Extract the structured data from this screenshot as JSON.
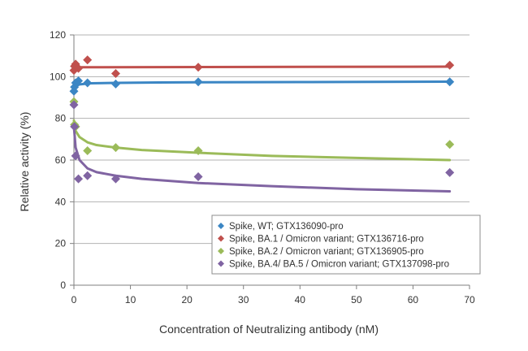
{
  "chart_data": {
    "type": "scatter",
    "xlabel": "Concentration of Neutralizing antibody (nM)",
    "ylabel": "Relative activity (%)",
    "xlim": [
      0,
      70
    ],
    "ylim": [
      0,
      120
    ],
    "x_ticks": [
      0,
      10,
      20,
      30,
      40,
      50,
      60,
      70
    ],
    "y_ticks": [
      0,
      20,
      40,
      60,
      80,
      100,
      120
    ],
    "grid": "horizontal",
    "legend_position": "bottom-right",
    "series": [
      {
        "name": "Spike, WT; GTX136090-pro",
        "color": "#3b86c4",
        "points": [
          [
            0,
            93
          ],
          [
            0.1,
            95
          ],
          [
            0.3,
            97
          ],
          [
            0.8,
            98
          ],
          [
            2.4,
            97
          ],
          [
            7.4,
            96.5
          ],
          [
            22,
            97.5
          ],
          [
            66.5,
            97.5
          ]
        ],
        "trend": [
          [
            0,
            93
          ],
          [
            0.3,
            95.5
          ],
          [
            1,
            96.3
          ],
          [
            3,
            96.8
          ],
          [
            7.4,
            97
          ],
          [
            15,
            97.2
          ],
          [
            22,
            97.3
          ],
          [
            40,
            97.4
          ],
          [
            66.5,
            97.6
          ]
        ]
      },
      {
        "name": "Spike, BA.1 / Omicron variant; GTX136716-pro",
        "color": "#c0504d",
        "points": [
          [
            0,
            103
          ],
          [
            0.1,
            105
          ],
          [
            0.3,
            106
          ],
          [
            0.8,
            104
          ],
          [
            2.4,
            108
          ],
          [
            7.4,
            101.5
          ],
          [
            22,
            104.5
          ],
          [
            66.5,
            105.5
          ]
        ],
        "trend": [
          [
            0,
            104.5
          ],
          [
            66.5,
            104.8
          ]
        ]
      },
      {
        "name": "Spike, BA.2 / Omicron variant; GTX136905-pro",
        "color": "#9bbb59",
        "points": [
          [
            0,
            88
          ],
          [
            0.1,
            77
          ],
          [
            0.3,
            76
          ],
          [
            2.4,
            64.5
          ],
          [
            7.4,
            66
          ],
          [
            22,
            64.5
          ],
          [
            66.5,
            67.5
          ]
        ],
        "trend": [
          [
            0,
            79
          ],
          [
            0.3,
            74
          ],
          [
            1,
            71
          ],
          [
            2.4,
            68.5
          ],
          [
            4,
            67.2
          ],
          [
            7.4,
            66
          ],
          [
            12,
            64.8
          ],
          [
            22,
            63.5
          ],
          [
            35,
            62
          ],
          [
            50,
            61
          ],
          [
            66.5,
            60
          ]
        ]
      },
      {
        "name": "Spike, BA.4/ BA.5 / Omicron variant; GTX137098-pro",
        "color": "#8064a2",
        "points": [
          [
            0,
            86.5
          ],
          [
            0.1,
            76
          ],
          [
            0.3,
            62
          ],
          [
            0.8,
            51
          ],
          [
            2.4,
            52.5
          ],
          [
            7.4,
            51
          ],
          [
            22,
            52
          ],
          [
            66.5,
            54
          ]
        ],
        "trend": [
          [
            0,
            76
          ],
          [
            0.3,
            66
          ],
          [
            1,
            60
          ],
          [
            2.4,
            56
          ],
          [
            4,
            54.2
          ],
          [
            7.4,
            52.5
          ],
          [
            12,
            51
          ],
          [
            22,
            49
          ],
          [
            35,
            47.5
          ],
          [
            50,
            46
          ],
          [
            66.5,
            45
          ]
        ]
      }
    ]
  }
}
